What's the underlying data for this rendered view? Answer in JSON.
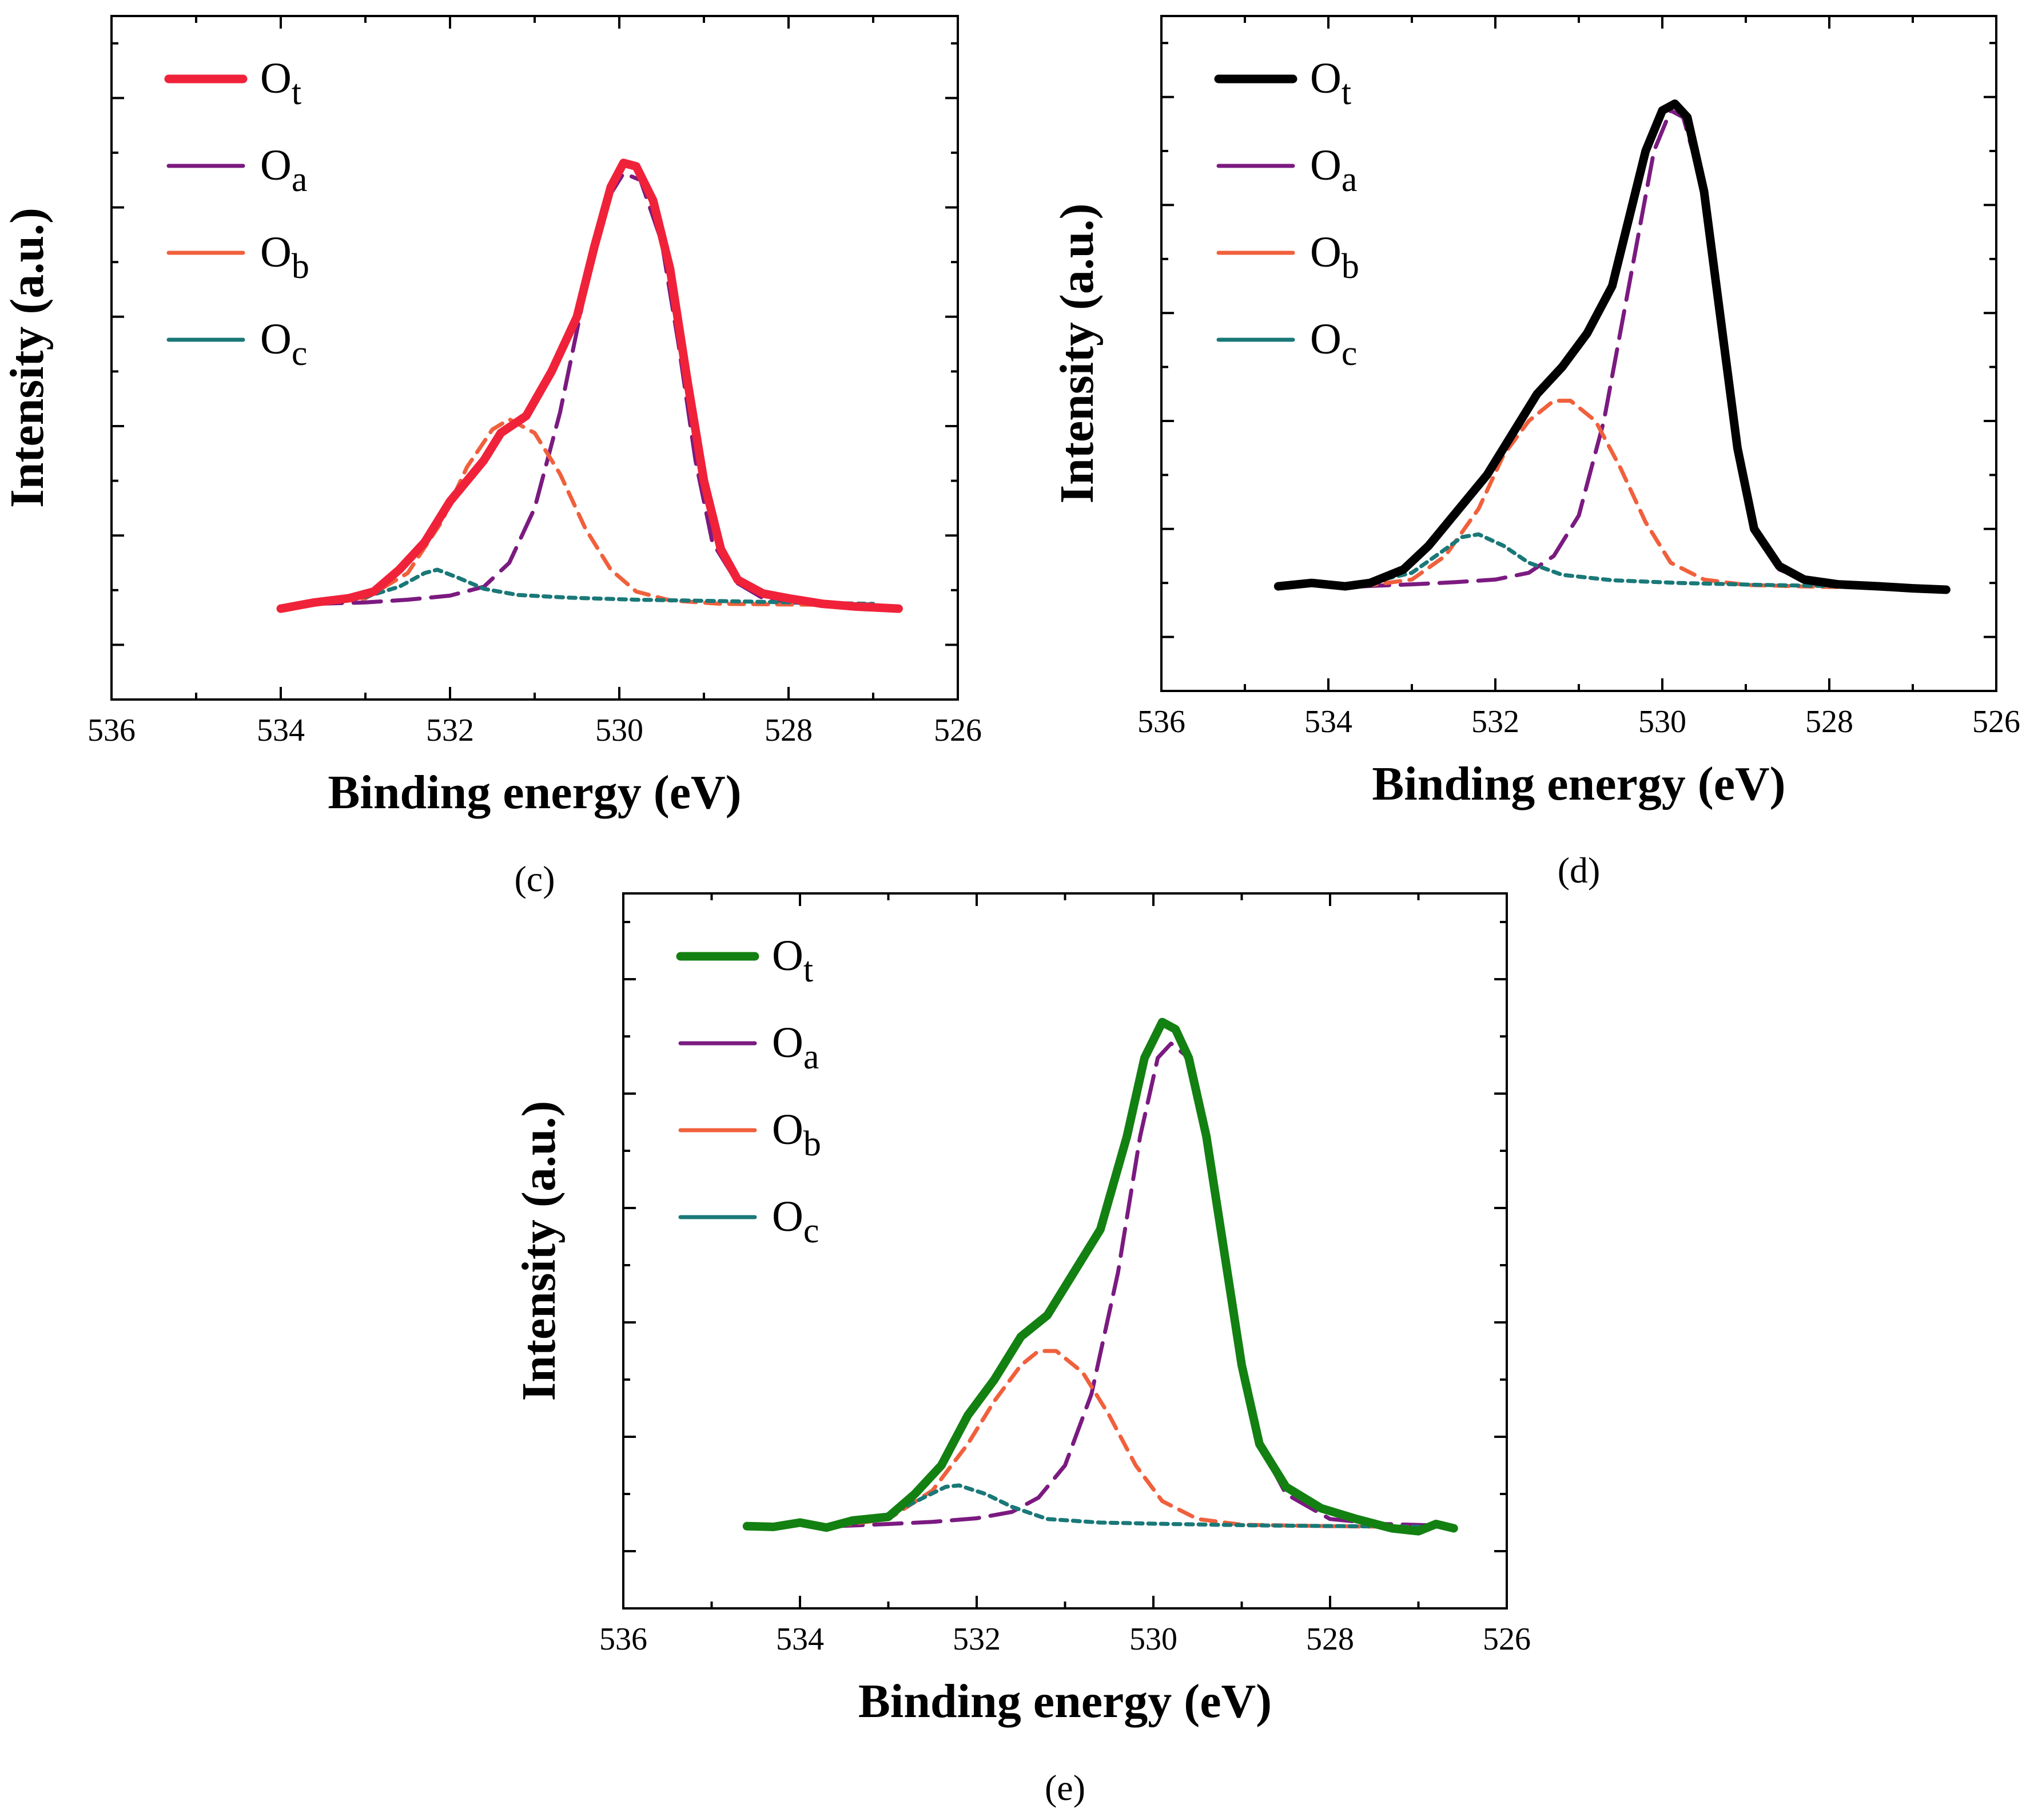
{
  "chart_data": [
    {
      "type": "line",
      "panel_label": "(c)",
      "xlabel": "Binding energy (eV)",
      "ylabel": "Intensity (a.u.)",
      "xlim": [
        536,
        526
      ],
      "x_ticks": [
        536,
        534,
        532,
        530,
        528,
        526
      ],
      "ylim": [
        0,
        1
      ],
      "y_tick_labels_shown": false,
      "legend_position": "top-left",
      "series": [
        {
          "name": "O",
          "sub": "t",
          "role": "total",
          "color": "#f0223a",
          "style": "solid",
          "points": [
            [
              534.0,
              0.133
            ],
            [
              533.6,
              0.142
            ],
            [
              533.2,
              0.148
            ],
            [
              532.9,
              0.158
            ],
            [
              532.6,
              0.19
            ],
            [
              532.3,
              0.23
            ],
            [
              532.0,
              0.29
            ],
            [
              531.6,
              0.35
            ],
            [
              531.4,
              0.39
            ],
            [
              531.1,
              0.415
            ],
            [
              530.8,
              0.48
            ],
            [
              530.5,
              0.56
            ],
            [
              530.3,
              0.66
            ],
            [
              530.1,
              0.75
            ],
            [
              529.95,
              0.785
            ],
            [
              529.8,
              0.78
            ],
            [
              529.6,
              0.73
            ],
            [
              529.4,
              0.63
            ],
            [
              529.2,
              0.47
            ],
            [
              529.0,
              0.32
            ],
            [
              528.8,
              0.22
            ],
            [
              528.6,
              0.175
            ],
            [
              528.3,
              0.155
            ],
            [
              528.0,
              0.148
            ],
            [
              527.6,
              0.14
            ],
            [
              527.2,
              0.136
            ],
            [
              526.7,
              0.133
            ]
          ]
        },
        {
          "name": "O",
          "sub": "a",
          "role": "component",
          "color": "#7b1a80",
          "style": "long-dash",
          "points": [
            [
              533.6,
              0.14
            ],
            [
              533.0,
              0.142
            ],
            [
              532.5,
              0.146
            ],
            [
              532.0,
              0.152
            ],
            [
              531.6,
              0.165
            ],
            [
              531.3,
              0.2
            ],
            [
              531.0,
              0.28
            ],
            [
              530.7,
              0.42
            ],
            [
              530.4,
              0.6
            ],
            [
              530.1,
              0.74
            ],
            [
              529.95,
              0.77
            ],
            [
              529.75,
              0.76
            ],
            [
              529.5,
              0.67
            ],
            [
              529.3,
              0.52
            ],
            [
              529.1,
              0.35
            ],
            [
              528.9,
              0.23
            ],
            [
              528.6,
              0.17
            ],
            [
              528.3,
              0.148
            ],
            [
              528.0,
              0.142
            ],
            [
              527.5,
              0.14
            ],
            [
              527.0,
              0.139
            ]
          ]
        },
        {
          "name": "O",
          "sub": "b",
          "role": "component",
          "color": "#f0603c",
          "style": "dash",
          "points": [
            [
              533.6,
              0.14
            ],
            [
              533.0,
              0.148
            ],
            [
              532.5,
              0.185
            ],
            [
              532.1,
              0.26
            ],
            [
              531.8,
              0.34
            ],
            [
              531.5,
              0.395
            ],
            [
              531.3,
              0.41
            ],
            [
              531.0,
              0.39
            ],
            [
              530.7,
              0.33
            ],
            [
              530.4,
              0.25
            ],
            [
              530.1,
              0.19
            ],
            [
              529.8,
              0.158
            ],
            [
              529.4,
              0.145
            ],
            [
              528.8,
              0.14
            ],
            [
              528.0,
              0.139
            ],
            [
              527.0,
              0.138
            ]
          ]
        },
        {
          "name": "O",
          "sub": "c",
          "role": "component",
          "color": "#1a7878",
          "style": "short-dash",
          "points": [
            [
              533.6,
              0.142
            ],
            [
              533.0,
              0.15
            ],
            [
              532.6,
              0.165
            ],
            [
              532.3,
              0.185
            ],
            [
              532.15,
              0.19
            ],
            [
              531.9,
              0.178
            ],
            [
              531.6,
              0.162
            ],
            [
              531.2,
              0.153
            ],
            [
              530.6,
              0.149
            ],
            [
              529.8,
              0.146
            ],
            [
              528.8,
              0.144
            ],
            [
              527.5,
              0.141
            ],
            [
              527.0,
              0.14
            ]
          ]
        }
      ]
    },
    {
      "type": "line",
      "panel_label": "(d)",
      "xlabel": "Binding energy (eV)",
      "ylabel": "Intensity (a.u.)",
      "xlim": [
        536,
        526
      ],
      "x_ticks": [
        536,
        534,
        532,
        530,
        528,
        526
      ],
      "ylim": [
        0,
        1
      ],
      "y_tick_labels_shown": false,
      "legend_position": "top-left",
      "series": [
        {
          "name": "O",
          "sub": "t",
          "role": "total",
          "color": "#000000",
          "style": "solid",
          "points": [
            [
              534.6,
              0.155
            ],
            [
              534.2,
              0.16
            ],
            [
              533.8,
              0.155
            ],
            [
              533.5,
              0.16
            ],
            [
              533.1,
              0.18
            ],
            [
              532.8,
              0.215
            ],
            [
              532.5,
              0.26
            ],
            [
              532.1,
              0.32
            ],
            [
              531.8,
              0.38
            ],
            [
              531.5,
              0.44
            ],
            [
              531.2,
              0.48
            ],
            [
              530.9,
              0.53
            ],
            [
              530.6,
              0.6
            ],
            [
              530.4,
              0.7
            ],
            [
              530.2,
              0.8
            ],
            [
              530.0,
              0.86
            ],
            [
              529.85,
              0.87
            ],
            [
              529.7,
              0.85
            ],
            [
              529.5,
              0.74
            ],
            [
              529.3,
              0.55
            ],
            [
              529.1,
              0.36
            ],
            [
              528.9,
              0.24
            ],
            [
              528.6,
              0.185
            ],
            [
              528.3,
              0.165
            ],
            [
              527.9,
              0.158
            ],
            [
              527.4,
              0.155
            ],
            [
              527.0,
              0.152
            ],
            [
              526.6,
              0.15
            ]
          ]
        },
        {
          "name": "O",
          "sub": "a",
          "role": "component",
          "color": "#7b1a80",
          "style": "long-dash",
          "points": [
            [
              533.6,
              0.155
            ],
            [
              533.0,
              0.158
            ],
            [
              532.5,
              0.161
            ],
            [
              532.0,
              0.165
            ],
            [
              531.6,
              0.175
            ],
            [
              531.3,
              0.2
            ],
            [
              531.0,
              0.26
            ],
            [
              530.7,
              0.4
            ],
            [
              530.4,
              0.6
            ],
            [
              530.1,
              0.8
            ],
            [
              529.9,
              0.86
            ],
            [
              529.75,
              0.85
            ],
            [
              529.5,
              0.74
            ],
            [
              529.3,
              0.55
            ],
            [
              529.1,
              0.36
            ],
            [
              528.9,
              0.24
            ],
            [
              528.6,
              0.18
            ],
            [
              528.2,
              0.16
            ],
            [
              527.6,
              0.155
            ],
            [
              527.1,
              0.153
            ]
          ]
        },
        {
          "name": "O",
          "sub": "b",
          "role": "component",
          "color": "#f0603c",
          "style": "dash",
          "points": [
            [
              533.6,
              0.155
            ],
            [
              533.0,
              0.165
            ],
            [
              532.6,
              0.2
            ],
            [
              532.2,
              0.27
            ],
            [
              531.9,
              0.35
            ],
            [
              531.6,
              0.4
            ],
            [
              531.3,
              0.43
            ],
            [
              531.1,
              0.43
            ],
            [
              530.8,
              0.4
            ],
            [
              530.5,
              0.33
            ],
            [
              530.2,
              0.25
            ],
            [
              529.9,
              0.19
            ],
            [
              529.5,
              0.165
            ],
            [
              529.0,
              0.157
            ],
            [
              528.0,
              0.154
            ],
            [
              527.1,
              0.153
            ]
          ]
        },
        {
          "name": "O",
          "sub": "c",
          "role": "component",
          "color": "#1a7878",
          "style": "short-dash",
          "points": [
            [
              533.6,
              0.158
            ],
            [
              533.0,
              0.175
            ],
            [
              532.6,
              0.21
            ],
            [
              532.4,
              0.228
            ],
            [
              532.2,
              0.232
            ],
            [
              531.9,
              0.215
            ],
            [
              531.6,
              0.19
            ],
            [
              531.2,
              0.172
            ],
            [
              530.6,
              0.164
            ],
            [
              529.8,
              0.16
            ],
            [
              528.8,
              0.157
            ],
            [
              527.8,
              0.155
            ],
            [
              527.1,
              0.154
            ]
          ]
        }
      ]
    },
    {
      "type": "line",
      "panel_label": "(e)",
      "xlabel": "Binding energy (eV)",
      "ylabel": "Intensity (a.u.)",
      "xlim": [
        536,
        526
      ],
      "x_ticks": [
        536,
        534,
        532,
        530,
        528,
        526
      ],
      "ylim": [
        0,
        1
      ],
      "y_tick_labels_shown": false,
      "legend_position": "top-left",
      "series": [
        {
          "name": "O",
          "sub": "t",
          "role": "total",
          "color": "#138012",
          "style": "solid",
          "points": [
            [
              534.6,
              0.115
            ],
            [
              534.3,
              0.114
            ],
            [
              534.0,
              0.12
            ],
            [
              533.7,
              0.113
            ],
            [
              533.4,
              0.123
            ],
            [
              533.0,
              0.128
            ],
            [
              532.7,
              0.16
            ],
            [
              532.4,
              0.2
            ],
            [
              532.1,
              0.27
            ],
            [
              531.8,
              0.32
            ],
            [
              531.5,
              0.38
            ],
            [
              531.2,
              0.41
            ],
            [
              530.9,
              0.47
            ],
            [
              530.6,
              0.53
            ],
            [
              530.3,
              0.66
            ],
            [
              530.1,
              0.77
            ],
            [
              529.9,
              0.82
            ],
            [
              529.75,
              0.81
            ],
            [
              529.6,
              0.77
            ],
            [
              529.4,
              0.66
            ],
            [
              529.2,
              0.5
            ],
            [
              529.0,
              0.34
            ],
            [
              528.8,
              0.23
            ],
            [
              528.5,
              0.17
            ],
            [
              528.1,
              0.14
            ],
            [
              527.7,
              0.125
            ],
            [
              527.3,
              0.112
            ],
            [
              527.0,
              0.108
            ],
            [
              526.8,
              0.118
            ],
            [
              526.6,
              0.112
            ]
          ]
        },
        {
          "name": "O",
          "sub": "a",
          "role": "component",
          "color": "#7b1a80",
          "style": "long-dash",
          "points": [
            [
              533.6,
              0.115
            ],
            [
              533.0,
              0.118
            ],
            [
              532.5,
              0.121
            ],
            [
              532.0,
              0.126
            ],
            [
              531.6,
              0.135
            ],
            [
              531.3,
              0.155
            ],
            [
              531.0,
              0.2
            ],
            [
              530.7,
              0.3
            ],
            [
              530.4,
              0.47
            ],
            [
              530.15,
              0.66
            ],
            [
              529.95,
              0.77
            ],
            [
              529.8,
              0.79
            ],
            [
              529.6,
              0.77
            ],
            [
              529.4,
              0.66
            ],
            [
              529.2,
              0.5
            ],
            [
              529.0,
              0.34
            ],
            [
              528.8,
              0.23
            ],
            [
              528.5,
              0.16
            ],
            [
              528.0,
              0.125
            ],
            [
              527.4,
              0.118
            ],
            [
              526.8,
              0.116
            ]
          ]
        },
        {
          "name": "O",
          "sub": "b",
          "role": "component",
          "color": "#f0603c",
          "style": "dash",
          "points": [
            [
              533.6,
              0.115
            ],
            [
              533.0,
              0.125
            ],
            [
              532.5,
              0.165
            ],
            [
              532.1,
              0.23
            ],
            [
              531.8,
              0.29
            ],
            [
              531.5,
              0.34
            ],
            [
              531.3,
              0.36
            ],
            [
              531.1,
              0.36
            ],
            [
              530.8,
              0.33
            ],
            [
              530.5,
              0.27
            ],
            [
              530.2,
              0.2
            ],
            [
              529.9,
              0.15
            ],
            [
              529.5,
              0.125
            ],
            [
              529.0,
              0.117
            ],
            [
              528.0,
              0.115
            ],
            [
              527.0,
              0.114
            ]
          ]
        },
        {
          "name": "O",
          "sub": "c",
          "role": "component",
          "color": "#1a7878",
          "style": "short-dash",
          "points": [
            [
              533.6,
              0.117
            ],
            [
              533.0,
              0.13
            ],
            [
              532.6,
              0.155
            ],
            [
              532.35,
              0.17
            ],
            [
              532.2,
              0.172
            ],
            [
              531.9,
              0.16
            ],
            [
              531.6,
              0.142
            ],
            [
              531.2,
              0.125
            ],
            [
              530.6,
              0.12
            ],
            [
              529.8,
              0.118
            ],
            [
              528.8,
              0.116
            ],
            [
              527.8,
              0.115
            ],
            [
              526.8,
              0.114
            ]
          ]
        }
      ]
    }
  ]
}
